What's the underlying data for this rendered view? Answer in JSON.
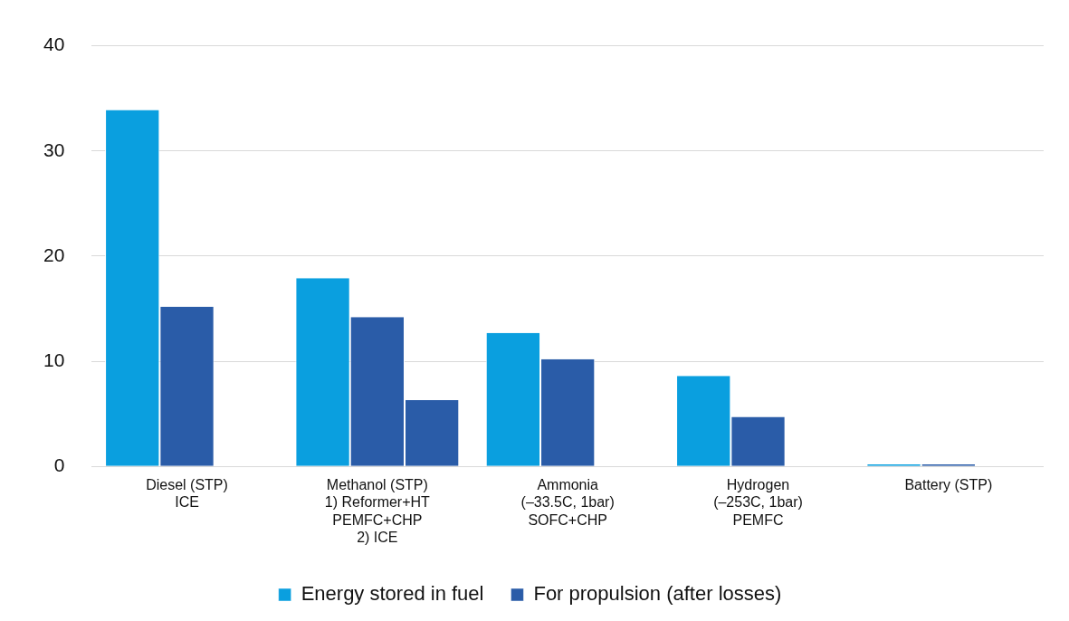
{
  "chart_data": {
    "type": "bar",
    "categories": [
      "Diesel (STP)\nICE",
      "Methanol (STP)\n1) Reformer+HT\nPEMFC+CHP\n2) ICE",
      "Ammonia\n(–33.5C, 1bar)\nSOFC+CHP",
      "Hydrogen\n(–253C, 1bar)\nPEMFC",
      "Battery (STP)"
    ],
    "series": [
      {
        "name": "Energy stored in fuel",
        "color": "#0a9fdf",
        "values": [
          33.9,
          17.9,
          12.7,
          8.6,
          0.2
        ]
      },
      {
        "name": "For propulsion (after losses)",
        "color": "#2a5ca8",
        "values": [
          15.2,
          14.2,
          10.2,
          4.7,
          0.2
        ]
      },
      {
        "color": "#2a5ca8",
        "values": [
          null,
          6.3,
          null,
          null,
          null
        ]
      }
    ],
    "ylim": [
      0,
      40
    ],
    "yticks": [
      0,
      10,
      20,
      30,
      40
    ],
    "grid": "y",
    "legend": "bottom"
  }
}
